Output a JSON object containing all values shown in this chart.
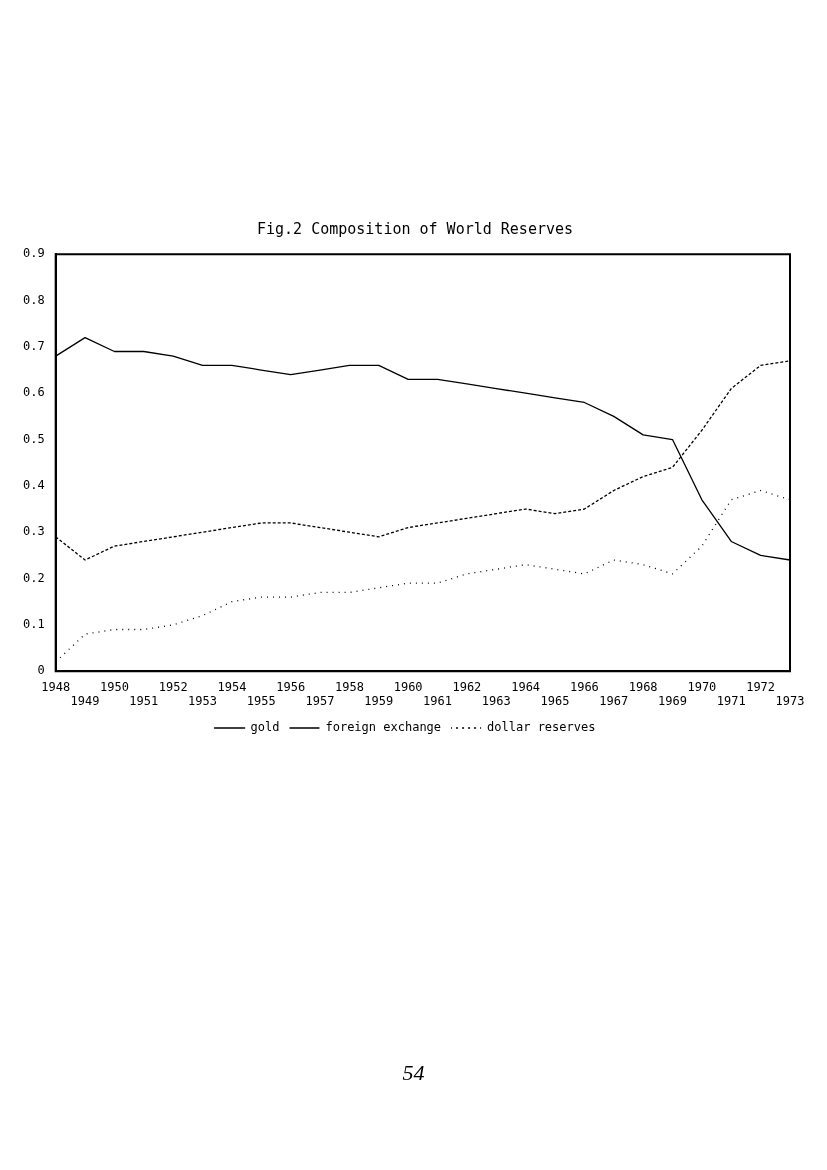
{
  "chart_data": {
    "type": "line",
    "title": "Fig.2 Composition of World Reserves",
    "categories": [
      "1948",
      "1949",
      "1950",
      "1951",
      "1952",
      "1953",
      "1954",
      "1955",
      "1956",
      "1957",
      "1958",
      "1959",
      "1960",
      "1961",
      "1962",
      "1963",
      "1964",
      "1965",
      "1966",
      "1967",
      "1968",
      "1969",
      "1970",
      "1971",
      "1972",
      "1973"
    ],
    "series": [
      {
        "name": "gold",
        "color": "#000000",
        "line_style": "solid",
        "values": [
          0.68,
          0.72,
          0.69,
          0.69,
          0.68,
          0.66,
          0.66,
          0.65,
          0.64,
          0.65,
          0.66,
          0.66,
          0.63,
          0.63,
          0.62,
          0.61,
          0.6,
          0.59,
          0.58,
          0.55,
          0.51,
          0.5,
          0.37,
          0.28,
          0.25,
          0.24
        ]
      },
      {
        "name": "foreign exchange",
        "color": "#000000",
        "line_style": "dashed",
        "values": [
          0.29,
          0.24,
          0.27,
          0.28,
          0.29,
          0.3,
          0.31,
          0.32,
          0.32,
          0.31,
          0.3,
          0.29,
          0.31,
          0.32,
          0.33,
          0.34,
          0.35,
          0.34,
          0.35,
          0.39,
          0.42,
          0.44,
          0.52,
          0.61,
          0.66,
          0.67
        ]
      },
      {
        "name": "dollar reserves",
        "color": "#000000",
        "line_style": "dotted",
        "values": [
          0.02,
          0.08,
          0.09,
          0.09,
          0.1,
          0.12,
          0.15,
          0.16,
          0.16,
          0.17,
          0.17,
          0.18,
          0.19,
          0.19,
          0.21,
          0.22,
          0.23,
          0.22,
          0.21,
          0.24,
          0.23,
          0.21,
          0.27,
          0.37,
          0.39,
          0.37
        ]
      }
    ],
    "ylim": [
      0,
      0.9
    ],
    "yticks": [
      0,
      0.1,
      0.2,
      0.3,
      0.4,
      0.5,
      0.6,
      0.7,
      0.8,
      0.9
    ],
    "grid": false,
    "legend": "bottom",
    "marker": "none",
    "annotations": [
      "54"
    ]
  }
}
